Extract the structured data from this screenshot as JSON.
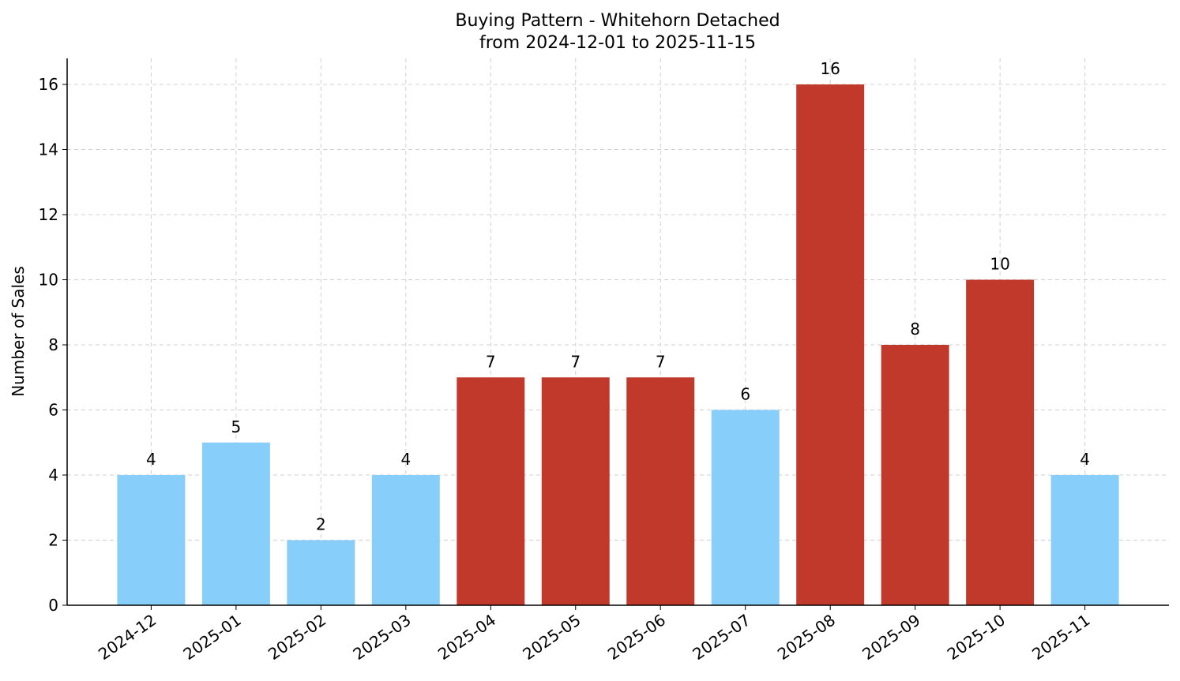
{
  "chart_data": {
    "type": "bar",
    "title": "Buying Pattern - Whitehorn Detached",
    "subtitle": "from 2024-12-01 to 2025-11-15",
    "y_label": "Number of Sales",
    "categories": [
      "2024-12",
      "2025-01",
      "2025-02",
      "2025-03",
      "2025-04",
      "2025-05",
      "2025-06",
      "2025-07",
      "2025-08",
      "2025-09",
      "2025-10",
      "2025-11"
    ],
    "values": [
      4,
      5,
      2,
      4,
      7,
      7,
      7,
      6,
      16,
      8,
      10,
      4
    ],
    "colors": [
      "#87cefa",
      "#87cefa",
      "#87cefa",
      "#87cefa",
      "#c0392b",
      "#c0392b",
      "#c0392b",
      "#87cefa",
      "#c0392b",
      "#c0392b",
      "#c0392b",
      "#87cefa"
    ],
    "ylim": [
      0,
      16.8
    ],
    "yticks": [
      0,
      2,
      4,
      6,
      8,
      10,
      12,
      14,
      16
    ],
    "grid": true
  }
}
